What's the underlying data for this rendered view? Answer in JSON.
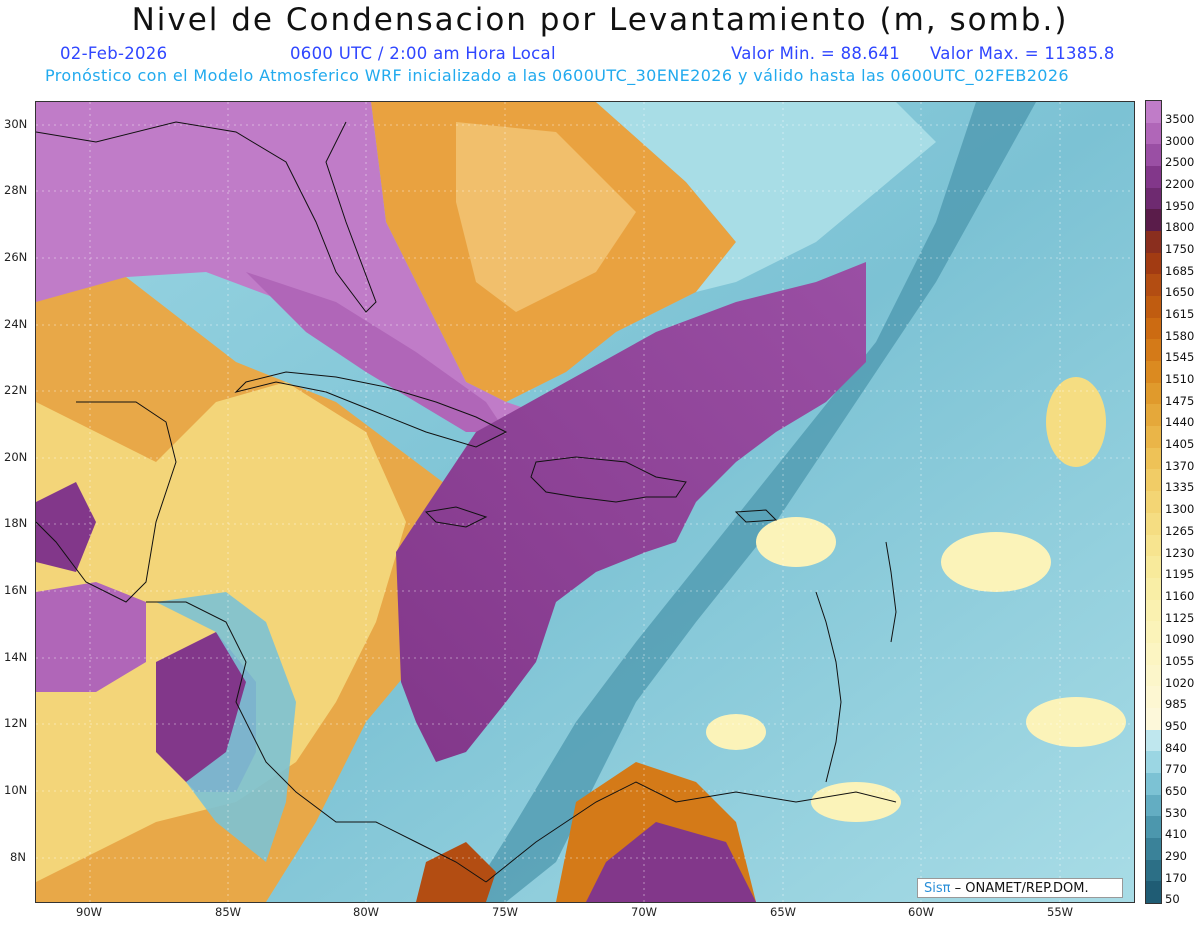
{
  "title": "Nivel de Condensacion por Levantamiento (m, somb.)",
  "date": "02-Feb-2026",
  "time_label": "0600 UTC / 2:00 am Hora Local",
  "min_label": "Valor Min. = 88.641",
  "max_label": "Valor Max. = 11385.8",
  "subtitle": "Pronóstico con el Modelo Atmosferico WRF inicializado a las 0600UTC_30ENE2026 y válido hasta las  0600UTC_02FEB2026",
  "lat_labels": [
    "30N",
    "28N",
    "26N",
    "24N",
    "22N",
    "20N",
    "18N",
    "16N",
    "14N",
    "12N",
    "10N",
    "8N"
  ],
  "lon_labels": [
    "90W",
    "85W",
    "80W",
    "75W",
    "70W",
    "65W",
    "60W",
    "55W"
  ],
  "colorbar": {
    "labels": [
      "3500",
      "3000",
      "2500",
      "2200",
      "1950",
      "1800",
      "1750",
      "1685",
      "1650",
      "1615",
      "1580",
      "1545",
      "1510",
      "1475",
      "1440",
      "1405",
      "1370",
      "1335",
      "1300",
      "1265",
      "1230",
      "1195",
      "1160",
      "1125",
      "1090",
      "1055",
      "1020",
      "985",
      "950",
      "840",
      "770",
      "650",
      "530",
      "410",
      "290",
      "170",
      "50"
    ],
    "colors": [
      "#c07cc8",
      "#b066b8",
      "#9a4fa4",
      "#82378a",
      "#6e2a70",
      "#5a1c4a",
      "#8a2e1e",
      "#a23b12",
      "#b34d12",
      "#c05c10",
      "#cc6b12",
      "#d47a18",
      "#db8a20",
      "#e09a2c",
      "#e5a83a",
      "#eab548",
      "#eec257",
      "#f1cc66",
      "#f3d574",
      "#f5dd82",
      "#f7e48f",
      "#f8ea9b",
      "#f9eea6",
      "#faf1b0",
      "#fbf3b9",
      "#fcf5c2",
      "#fcf6ca",
      "#fdf7d2",
      "#fdf8da",
      "#bfe7ee",
      "#9bd6e3",
      "#7cc2d4",
      "#63adc2",
      "#4c97ad",
      "#3a8299",
      "#2c6f86",
      "#1f5c74"
    ]
  },
  "credit": {
    "sis": "Sisπ",
    "rest": " – ONAMET/REP.DOM."
  }
}
